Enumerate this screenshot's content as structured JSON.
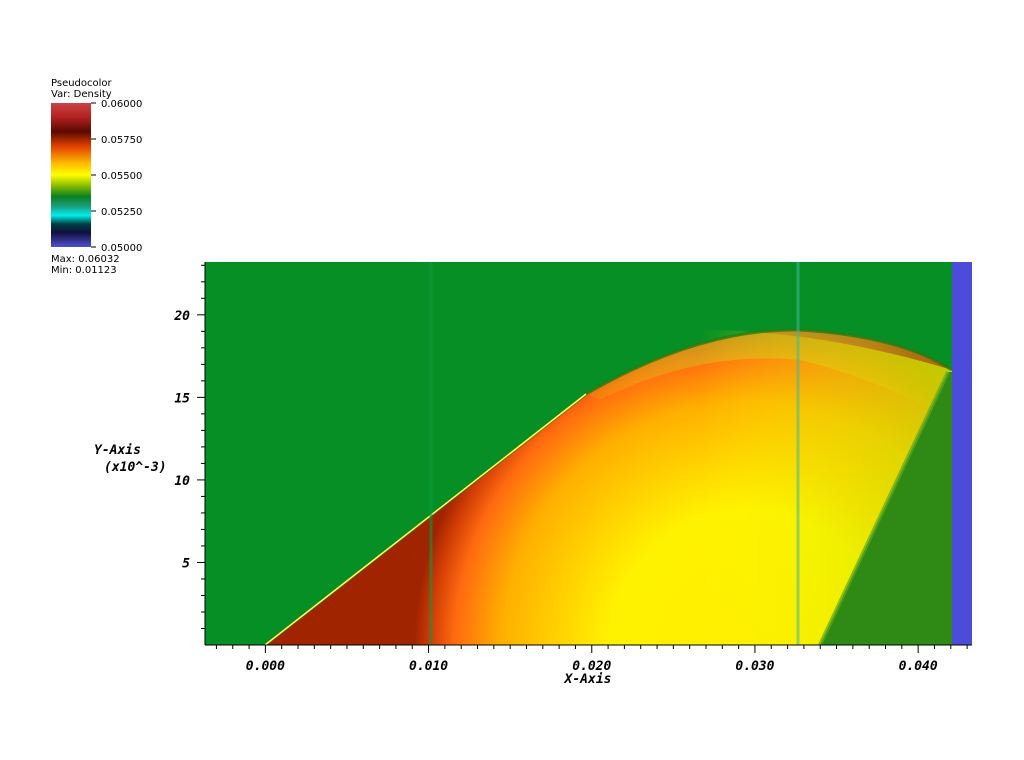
{
  "legend": {
    "title_line1": "Pseudocolor",
    "title_line2": "Var: Density",
    "ticks": [
      "0.06000",
      "0.05750",
      "0.05500",
      "0.05250",
      "0.05000"
    ],
    "max_label": "Max: 0.06032",
    "min_label": "Min: 0.01123",
    "colors": [
      "#cc4444",
      "#8a1a0a",
      "#d94a0a",
      "#ff9900",
      "#ffff00",
      "#a0c800",
      "#1a8a1a",
      "#00c0c0",
      "#1a1a80",
      "#4040c0"
    ]
  },
  "chart_data": {
    "type": "heatmap",
    "variable": "Density",
    "xlabel": "X-Axis",
    "ylabel": "Y-Axis",
    "ylabel_scale": "(x10^-3)",
    "x_ticks": [
      "0.000",
      "0.010",
      "0.020",
      "0.030",
      "0.040"
    ],
    "x_tick_values": [
      0.0,
      0.01,
      0.02,
      0.03,
      0.04
    ],
    "y_ticks": [
      "5",
      "10",
      "15",
      "20"
    ],
    "y_tick_values": [
      5,
      10,
      15,
      20
    ],
    "xlim": [
      -0.0037,
      0.0433
    ],
    "ylim": [
      0,
      23.2
    ],
    "colors": {
      "background": "#068f25",
      "dark_red": "#a02400",
      "orange": "#ff6b10",
      "yellow": "#ffee00",
      "yellow_green": "#d8e600",
      "green_wedge": "#2e8a14",
      "blue_strip": "#4b4cd9"
    }
  }
}
